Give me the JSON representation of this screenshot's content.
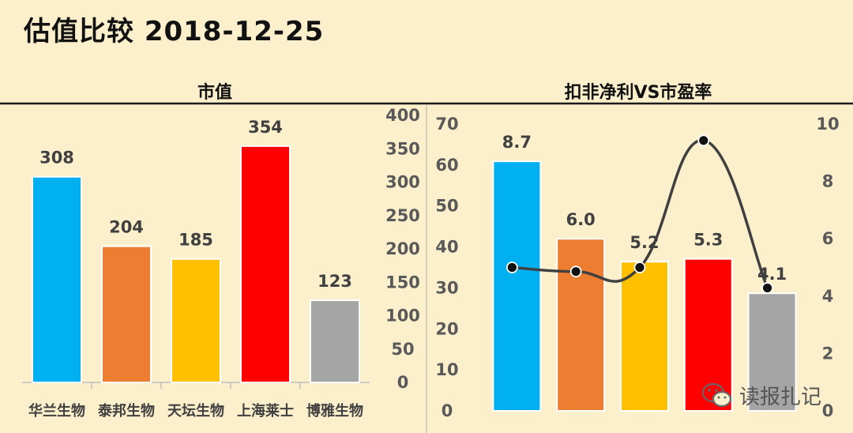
{
  "title": "估值比较  2018-12-25",
  "watermark": {
    "text": "读报扎记",
    "icon": "wechat-icon"
  },
  "chart_data": [
    {
      "type": "bar",
      "title": "市值",
      "categories": [
        "华兰生物",
        "泰邦生物",
        "天坛生物",
        "上海莱士",
        "博雅生物"
      ],
      "values": [
        308,
        204,
        185,
        354,
        123
      ],
      "colors": [
        "#00B0F0",
        "#ED7D31",
        "#FFC000",
        "#FF0000",
        "#A5A5A5"
      ],
      "ylim": [
        0,
        400
      ],
      "yticks": [
        0,
        50,
        100,
        150,
        200,
        250,
        300,
        350,
        400
      ],
      "ylabel_side": "right",
      "grid": false
    },
    {
      "type": "bar+line",
      "title": "扣非净利VS市盈率",
      "categories": [
        "华兰生物",
        "泰邦生物",
        "天坛生物",
        "上海莱士",
        "博雅生物"
      ],
      "bar_values": [
        8.7,
        6.0,
        5.2,
        5.3,
        4.1
      ],
      "bar_axis": "right",
      "line_values": [
        35,
        34,
        35,
        66,
        30
      ],
      "line_axis": "left",
      "colors": [
        "#00B0F0",
        "#ED7D31",
        "#FFC000",
        "#FF0000",
        "#A5A5A5"
      ],
      "left_ylim": [
        0,
        70
      ],
      "left_yticks": [
        0,
        10,
        20,
        30,
        40,
        50,
        60,
        70
      ],
      "right_ylim": [
        0,
        10
      ],
      "right_yticks": [
        0,
        2,
        4,
        6,
        8,
        10
      ],
      "line_color": "#404040",
      "grid": false
    }
  ]
}
